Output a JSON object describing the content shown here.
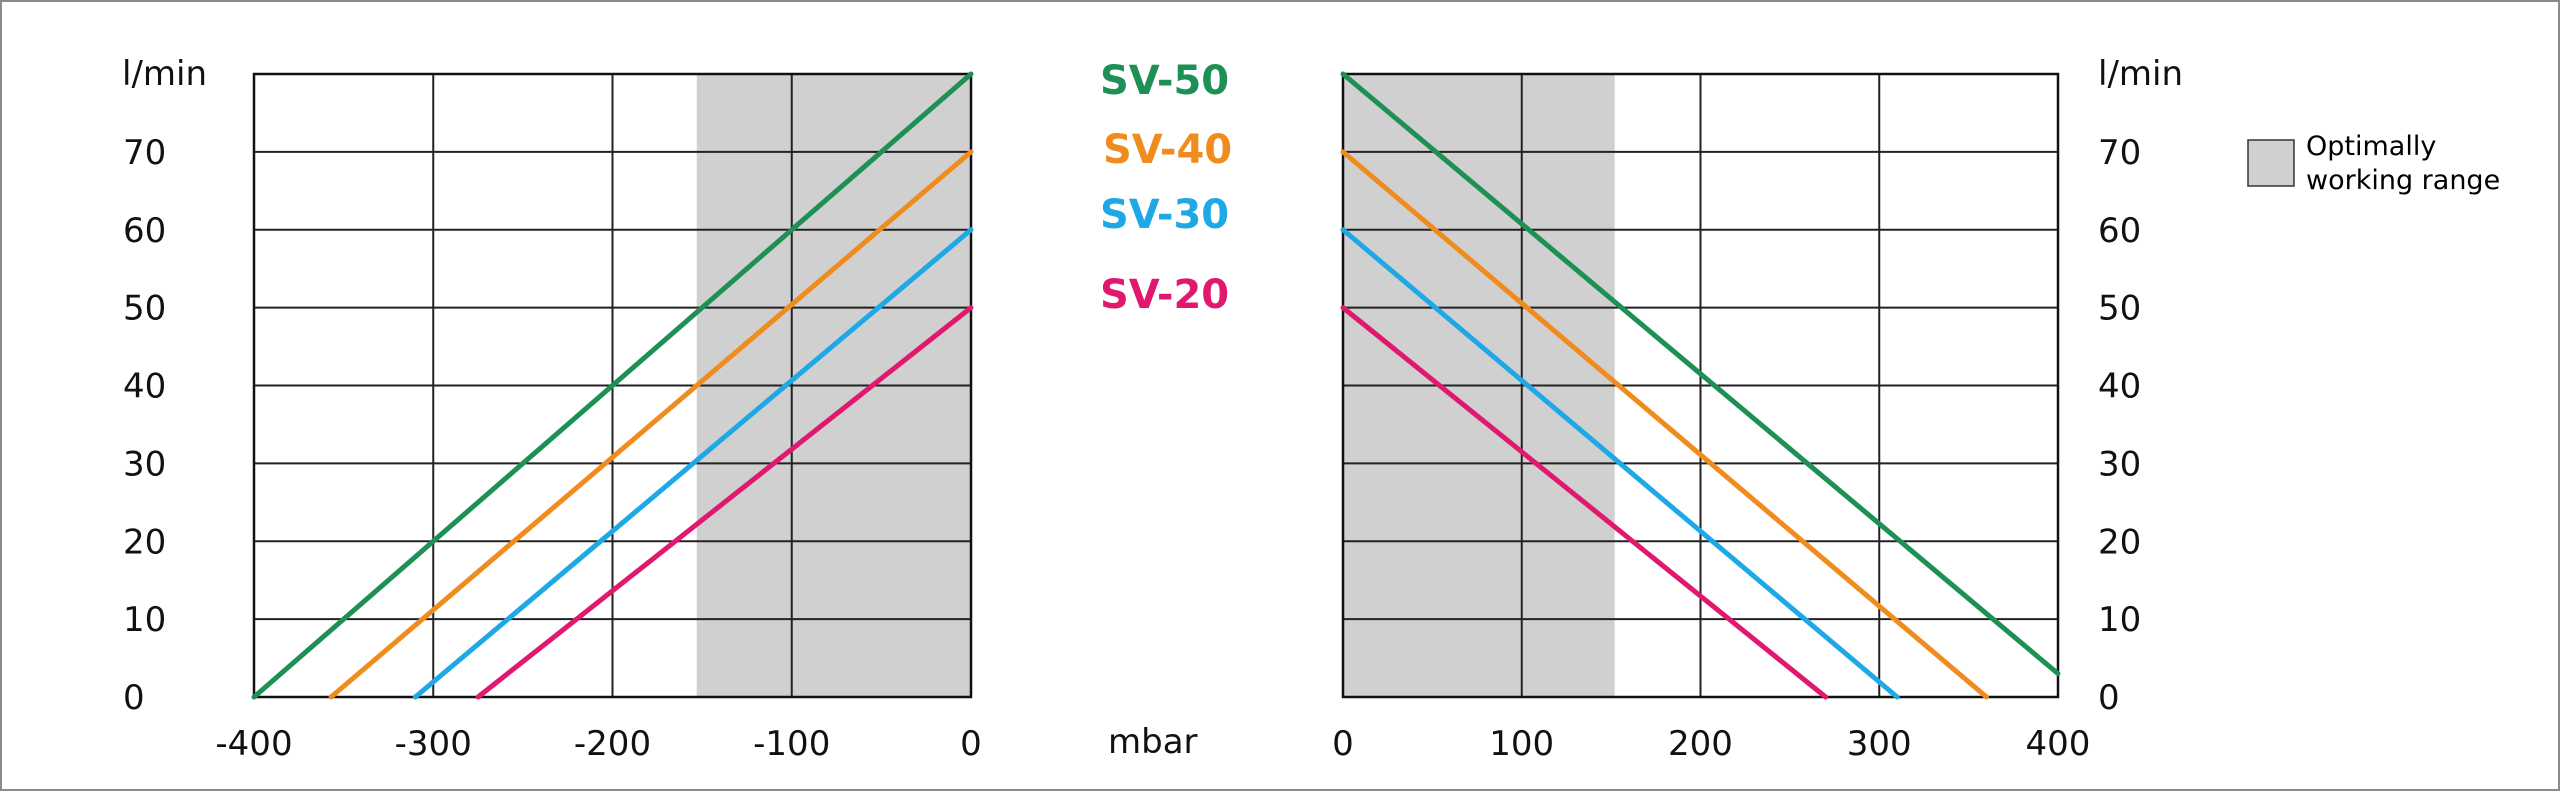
{
  "chart_data": [
    {
      "type": "line",
      "title": "",
      "xlabel": "mbar",
      "ylabel": "l/min",
      "xlim": [
        -400,
        0
      ],
      "ylim": [
        0,
        80
      ],
      "x_ticks": [
        "-400",
        "-300",
        "-200",
        "-100",
        "0"
      ],
      "y_ticks": [
        "0",
        "10",
        "20",
        "30",
        "40",
        "50",
        "60",
        "70"
      ],
      "grid": true,
      "shaded_range": [
        -153,
        0
      ],
      "series": [
        {
          "name": "SV-50",
          "color": "#1e8f55",
          "x": [
            -400,
            0
          ],
          "y": [
            0,
            80
          ]
        },
        {
          "name": "SV-40",
          "color": "#f08c1e",
          "x": [
            -357,
            0
          ],
          "y": [
            0,
            70
          ]
        },
        {
          "name": "SV-30",
          "color": "#1ea9e6",
          "x": [
            -310,
            0
          ],
          "y": [
            0,
            60
          ]
        },
        {
          "name": "SV-20",
          "color": "#e0186e",
          "x": [
            -275,
            0
          ],
          "y": [
            0,
            50
          ]
        }
      ]
    },
    {
      "type": "line",
      "title": "",
      "xlabel": "mbar",
      "ylabel": "l/min",
      "xlim": [
        0,
        400
      ],
      "ylim": [
        0,
        80
      ],
      "x_ticks": [
        "0",
        "100",
        "200",
        "300",
        "400"
      ],
      "y_ticks": [
        "0",
        "10",
        "20",
        "30",
        "40",
        "50",
        "60",
        "70"
      ],
      "grid": true,
      "shaded_range": [
        0,
        152
      ],
      "series": [
        {
          "name": "SV-50",
          "color": "#1e8f55",
          "x": [
            0,
            400
          ],
          "y": [
            80,
            3
          ]
        },
        {
          "name": "SV-40",
          "color": "#f08c1e",
          "x": [
            0,
            360
          ],
          "y": [
            70,
            0
          ]
        },
        {
          "name": "SV-30",
          "color": "#1ea9e6",
          "x": [
            0,
            310
          ],
          "y": [
            60,
            0
          ]
        },
        {
          "name": "SV-20",
          "color": "#e0186e",
          "x": [
            0,
            270
          ],
          "y": [
            50,
            0
          ]
        }
      ]
    }
  ],
  "labels": {
    "ylabel_left": "l/min",
    "ylabel_right": "l/min",
    "xlabel_center": "mbar",
    "series_labels": [
      {
        "text": "SV-50",
        "color": "#1e8f55"
      },
      {
        "text": "SV-40",
        "color": "#f08c1e"
      },
      {
        "text": "SV-30",
        "color": "#1ea9e6"
      },
      {
        "text": "SV-20",
        "color": "#e0186e"
      }
    ]
  },
  "legend": {
    "line1": "Optimally",
    "line2": "working range",
    "swatch_color": "#d0d0d0"
  },
  "colors": {
    "shade": "#d0d0d0",
    "grid": "#222222"
  }
}
